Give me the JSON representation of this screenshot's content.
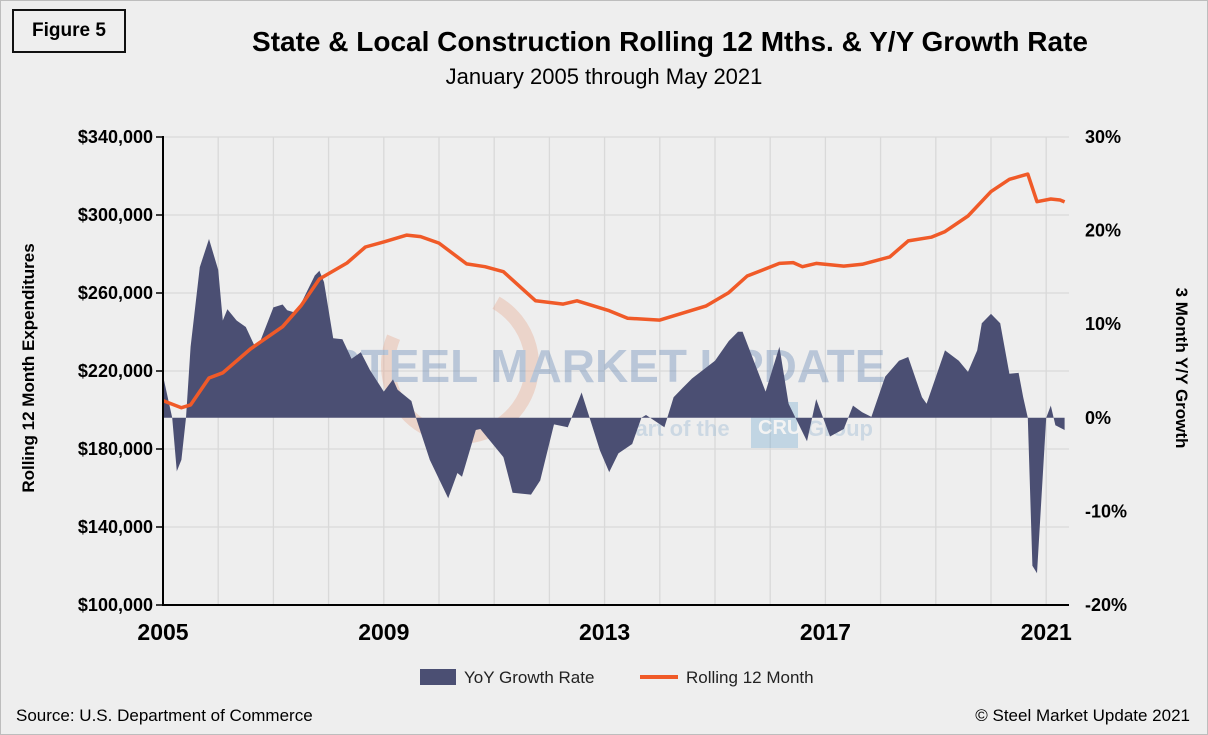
{
  "figure_label": "Figure 5",
  "source": "Source: U.S. Department of Commerce",
  "copyright": "© Steel Market Update 2021",
  "watermark": {
    "main": "STEEL MARKET UPDATE",
    "sub_prefix": "part of the",
    "sub_logo": "CRU",
    "sub_suffix": "Group"
  },
  "colors": {
    "area": "#4b4f73",
    "line": "#f05a28",
    "grid": "#d9d9d9",
    "background": "#eeeeee"
  },
  "chart_data": {
    "type": "area+line",
    "title": "State & Local Construction Rolling 12 Mths. & Y/Y Growth Rate",
    "subtitle": "January 2005 through May 2021",
    "xlabel": "",
    "ylabel_left": "Rolling 12 Month Expenditures",
    "ylabel_right": "3 Month Y/Y Growth",
    "x_ticks": [
      "2005",
      "2009",
      "2013",
      "2017",
      "2021"
    ],
    "ylim_left": [
      100000,
      340000
    ],
    "y_ticks_left": [
      "$100,000",
      "$140,000",
      "$180,000",
      "$220,000",
      "$260,000",
      "$300,000",
      "$340,000"
    ],
    "ylim_right": [
      -20,
      30
    ],
    "y_ticks_right": [
      "-20%",
      "-10%",
      "0%",
      "10%",
      "20%",
      "30%"
    ],
    "grid": true,
    "legend_position": "bottom",
    "series": [
      {
        "name": "YoY Growth Rate",
        "type": "area",
        "axis": "right",
        "points": [
          [
            "2005-01",
            4.5
          ],
          [
            "2005-03",
            0
          ],
          [
            "2005-04",
            -5.7
          ],
          [
            "2005-05",
            -4.5
          ],
          [
            "2005-06",
            0
          ],
          [
            "2005-07",
            7.6
          ],
          [
            "2005-09",
            16.1
          ],
          [
            "2005-11",
            19.1
          ],
          [
            "2006-01",
            15.8
          ],
          [
            "2006-02",
            10.4
          ],
          [
            "2006-03",
            11.6
          ],
          [
            "2006-05",
            10.4
          ],
          [
            "2006-07",
            9.7
          ],
          [
            "2006-09",
            7.6
          ],
          [
            "2006-10",
            8.0
          ],
          [
            "2007-01",
            11.8
          ],
          [
            "2007-03",
            12.1
          ],
          [
            "2007-04",
            11.5
          ],
          [
            "2007-06",
            11.2
          ],
          [
            "2007-10",
            15.2
          ],
          [
            "2007-11",
            15.7
          ],
          [
            "2007-12",
            14.5
          ],
          [
            "2008-02",
            8.5
          ],
          [
            "2008-04",
            8.4
          ],
          [
            "2008-06",
            6.3
          ],
          [
            "2008-08",
            7.0
          ],
          [
            "2008-10",
            5.1
          ],
          [
            "2009-01",
            2.8
          ],
          [
            "2009-03",
            4.1
          ],
          [
            "2009-04",
            3.0
          ],
          [
            "2009-07",
            1.8
          ],
          [
            "2009-08",
            0
          ],
          [
            "2009-11",
            -4.5
          ],
          [
            "2010-03",
            -8.6
          ],
          [
            "2010-05",
            -5.9
          ],
          [
            "2010-06",
            -6.3
          ],
          [
            "2010-09",
            -1.3
          ],
          [
            "2010-10",
            -1.2
          ],
          [
            "2011-03",
            -4.2
          ],
          [
            "2011-05",
            -8.0
          ],
          [
            "2011-09",
            -8.2
          ],
          [
            "2011-11",
            -6.7
          ],
          [
            "2012-02",
            -0.7
          ],
          [
            "2012-05",
            -1.0
          ],
          [
            "2012-08",
            2.7
          ],
          [
            "2012-12",
            -3.5
          ],
          [
            "2013-02",
            -5.8
          ],
          [
            "2013-04",
            -3.8
          ],
          [
            "2013-07",
            -2.8
          ],
          [
            "2013-09",
            0
          ],
          [
            "2013-10",
            0.3
          ],
          [
            "2014-02",
            -1.0
          ],
          [
            "2014-04",
            2.2
          ],
          [
            "2014-06",
            3.2
          ],
          [
            "2014-08",
            4.2
          ],
          [
            "2015-01",
            6.1
          ],
          [
            "2015-04",
            8.2
          ],
          [
            "2015-06",
            9.2
          ],
          [
            "2015-07",
            9.2
          ],
          [
            "2015-12",
            2.8
          ],
          [
            "2016-03",
            7.6
          ],
          [
            "2016-05",
            1.5
          ],
          [
            "2016-09",
            -2.5
          ],
          [
            "2016-11",
            2.0
          ],
          [
            "2017-02",
            -2.0
          ],
          [
            "2017-05",
            -1.2
          ],
          [
            "2017-07",
            1.3
          ],
          [
            "2017-09",
            0.6
          ],
          [
            "2017-11",
            0.1
          ],
          [
            "2018-02",
            4.4
          ],
          [
            "2018-05",
            6.1
          ],
          [
            "2018-07",
            6.5
          ],
          [
            "2018-10",
            2.2
          ],
          [
            "2018-11",
            1.5
          ],
          [
            "2019-03",
            7.2
          ],
          [
            "2019-06",
            6.1
          ],
          [
            "2019-08",
            4.9
          ],
          [
            "2019-10",
            7.2
          ],
          [
            "2019-11",
            10.1
          ],
          [
            "2020-01",
            11.1
          ],
          [
            "2020-03",
            10.1
          ],
          [
            "2020-05",
            4.7
          ],
          [
            "2020-07",
            4.8
          ],
          [
            "2020-08",
            2.2
          ],
          [
            "2020-09",
            0
          ],
          [
            "2020-10",
            -15.8
          ],
          [
            "2020-11",
            -16.6
          ],
          [
            "2021-01",
            0
          ],
          [
            "2021-02",
            1.3
          ],
          [
            "2021-03",
            -0.8
          ],
          [
            "2021-05",
            -1.3
          ]
        ]
      },
      {
        "name": "Rolling 12 Month",
        "type": "line",
        "axis": "left",
        "points": [
          [
            "2005-01",
            204800
          ],
          [
            "2005-05",
            201200
          ],
          [
            "2005-07",
            202600
          ],
          [
            "2005-11",
            216400
          ],
          [
            "2006-02",
            219100
          ],
          [
            "2006-08",
            231300
          ],
          [
            "2007-03",
            242700
          ],
          [
            "2007-07",
            253500
          ],
          [
            "2007-11",
            267200
          ],
          [
            "2008-05",
            275400
          ],
          [
            "2008-09",
            283600
          ],
          [
            "2009-01",
            286200
          ],
          [
            "2009-06",
            289700
          ],
          [
            "2009-09",
            288900
          ],
          [
            "2010-01",
            285600
          ],
          [
            "2010-07",
            274900
          ],
          [
            "2010-11",
            273500
          ],
          [
            "2011-03",
            270900
          ],
          [
            "2011-10",
            256000
          ],
          [
            "2012-04",
            254300
          ],
          [
            "2012-07",
            256000
          ],
          [
            "2013-02",
            250900
          ],
          [
            "2013-06",
            247100
          ],
          [
            "2014-01",
            246100
          ],
          [
            "2014-11",
            253300
          ],
          [
            "2015-04",
            260200
          ],
          [
            "2015-08",
            268700
          ],
          [
            "2016-03",
            275200
          ],
          [
            "2016-06",
            275600
          ],
          [
            "2016-08",
            273500
          ],
          [
            "2016-11",
            275200
          ],
          [
            "2017-05",
            273800
          ],
          [
            "2017-09",
            274700
          ],
          [
            "2018-03",
            278500
          ],
          [
            "2018-07",
            286700
          ],
          [
            "2018-12",
            288600
          ],
          [
            "2019-03",
            291500
          ],
          [
            "2019-08",
            299500
          ],
          [
            "2020-01",
            312000
          ],
          [
            "2020-05",
            318300
          ],
          [
            "2020-09",
            321000
          ],
          [
            "2020-11",
            306800
          ],
          [
            "2021-02",
            308200
          ],
          [
            "2021-04",
            307700
          ],
          [
            "2021-05",
            306700
          ]
        ]
      }
    ]
  }
}
